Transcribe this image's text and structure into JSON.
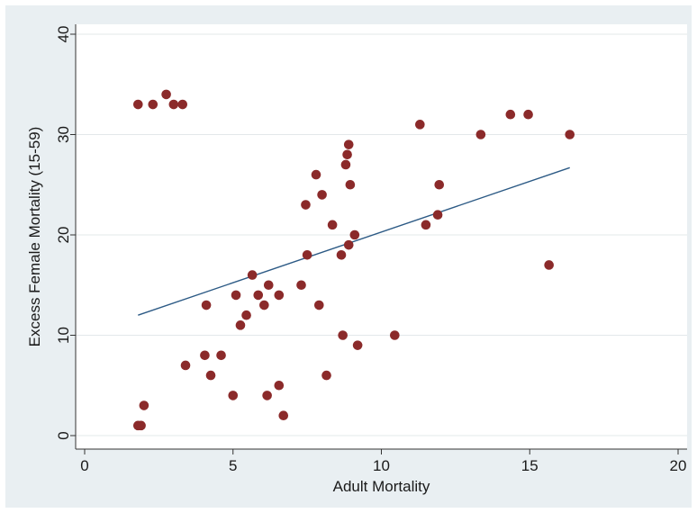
{
  "chart_data": {
    "type": "scatter",
    "xlabel": "Adult Mortality",
    "ylabel": "Excess Female Mortality (15-59)",
    "xlim": [
      0,
      20
    ],
    "ylim": [
      0,
      40
    ],
    "x_ticks": [
      "0",
      "5",
      "10",
      "15",
      "20"
    ],
    "y_ticks": [
      "0",
      "10",
      "20",
      "30",
      "40"
    ],
    "grid": "horizontal",
    "legend": "none",
    "colors": {
      "marker": "#8b2a2a",
      "fit_line": "#2c5a85",
      "frame_background": "#e9eff2",
      "plot_background": "#ffffff",
      "gridline": "#e3e8ea"
    },
    "points": [
      {
        "x": 1.8,
        "y": 33
      },
      {
        "x": 2.3,
        "y": 33
      },
      {
        "x": 2.75,
        "y": 34
      },
      {
        "x": 3.0,
        "y": 33
      },
      {
        "x": 3.3,
        "y": 33
      },
      {
        "x": 1.8,
        "y": 1
      },
      {
        "x": 1.9,
        "y": 1
      },
      {
        "x": 2.0,
        "y": 3
      },
      {
        "x": 3.4,
        "y": 7
      },
      {
        "x": 4.05,
        "y": 8
      },
      {
        "x": 4.1,
        "y": 13
      },
      {
        "x": 4.25,
        "y": 6
      },
      {
        "x": 4.6,
        "y": 8
      },
      {
        "x": 5.0,
        "y": 4
      },
      {
        "x": 5.1,
        "y": 14
      },
      {
        "x": 5.25,
        "y": 11
      },
      {
        "x": 5.45,
        "y": 12
      },
      {
        "x": 5.65,
        "y": 16
      },
      {
        "x": 5.85,
        "y": 14
      },
      {
        "x": 6.05,
        "y": 13
      },
      {
        "x": 6.15,
        "y": 4
      },
      {
        "x": 6.2,
        "y": 15
      },
      {
        "x": 6.55,
        "y": 14
      },
      {
        "x": 6.55,
        "y": 5
      },
      {
        "x": 6.7,
        "y": 2
      },
      {
        "x": 7.3,
        "y": 15
      },
      {
        "x": 7.45,
        "y": 23
      },
      {
        "x": 7.5,
        "y": 18
      },
      {
        "x": 7.8,
        "y": 26
      },
      {
        "x": 7.9,
        "y": 13
      },
      {
        "x": 8.0,
        "y": 24
      },
      {
        "x": 8.15,
        "y": 6
      },
      {
        "x": 8.35,
        "y": 21
      },
      {
        "x": 8.65,
        "y": 18
      },
      {
        "x": 8.7,
        "y": 10
      },
      {
        "x": 8.8,
        "y": 27
      },
      {
        "x": 8.85,
        "y": 28
      },
      {
        "x": 8.9,
        "y": 29
      },
      {
        "x": 8.9,
        "y": 19
      },
      {
        "x": 8.95,
        "y": 25
      },
      {
        "x": 9.1,
        "y": 20
      },
      {
        "x": 9.2,
        "y": 9
      },
      {
        "x": 10.45,
        "y": 10
      },
      {
        "x": 11.3,
        "y": 31
      },
      {
        "x": 11.5,
        "y": 21
      },
      {
        "x": 11.9,
        "y": 22
      },
      {
        "x": 11.95,
        "y": 25
      },
      {
        "x": 13.35,
        "y": 30
      },
      {
        "x": 14.35,
        "y": 32
      },
      {
        "x": 14.95,
        "y": 32
      },
      {
        "x": 15.65,
        "y": 17
      },
      {
        "x": 16.35,
        "y": 30
      }
    ],
    "fit_line": {
      "x": [
        1.8,
        16.35
      ],
      "y": [
        12.0,
        26.7
      ]
    }
  }
}
